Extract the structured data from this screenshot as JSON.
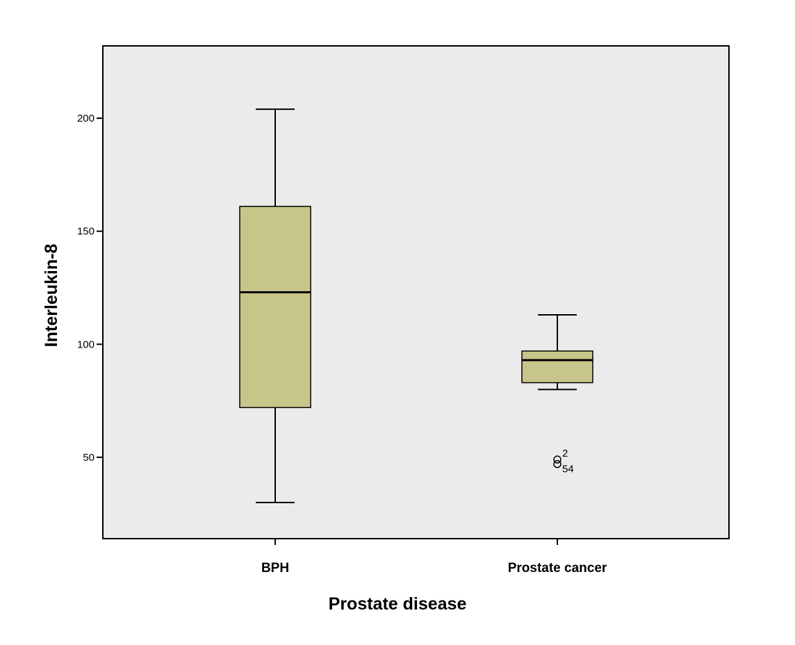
{
  "chart_data": {
    "type": "boxplot",
    "title": "",
    "xlabel": "Prostate disease",
    "ylabel": "Interleukin-8",
    "ylim": [
      14,
      232
    ],
    "yticks": [
      50,
      100,
      150,
      200
    ],
    "grid": false,
    "plot_background": "#ebebeb",
    "box_fill": "#c8c58b",
    "categories": [
      "BPH",
      "Prostate cancer"
    ],
    "boxes": [
      {
        "category": "BPH",
        "whisker_low": 30,
        "q1": 72,
        "median": 123,
        "q3": 161,
        "whisker_high": 204,
        "outliers": []
      },
      {
        "category": "Prostate cancer",
        "whisker_low": 80,
        "q1": 83,
        "median": 93,
        "q3": 97,
        "whisker_high": 113,
        "outliers": [
          {
            "value": 49,
            "label": "2"
          },
          {
            "value": 47,
            "label": "54"
          }
        ]
      }
    ]
  }
}
